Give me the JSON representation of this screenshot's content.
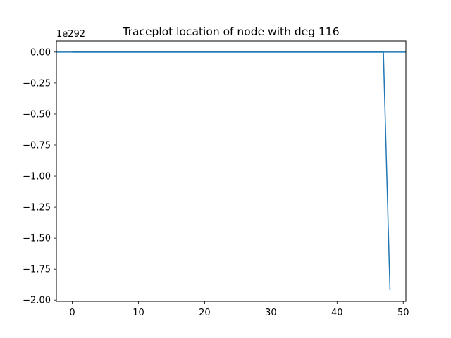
{
  "chart_data": {
    "type": "line",
    "title": "Traceplot location of node with deg 116",
    "xlabel": "",
    "ylabel": "",
    "offset_text": "1e292",
    "y_scale_factor": 1e+292,
    "xlim": [
      -2.4,
      50.4
    ],
    "ylim": [
      -2.01,
      0.09
    ],
    "x_ticks": [
      0,
      10,
      20,
      30,
      40,
      50
    ],
    "x_tick_labels": [
      "0",
      "10",
      "20",
      "30",
      "40",
      "50"
    ],
    "y_ticks": [
      0.0,
      -0.25,
      -0.5,
      -0.75,
      -1.0,
      -1.25,
      -1.5,
      -1.75,
      -2.0
    ],
    "y_tick_labels": [
      "0.00",
      "−0.25",
      "−0.50",
      "−0.75",
      "−1.00",
      "−1.25",
      "−1.50",
      "−1.75",
      "−2.00"
    ],
    "grid": false,
    "colors": {
      "series": "#1f77b4",
      "axes": "#000000"
    },
    "series": [
      {
        "x": [
          0,
          1,
          2,
          3,
          4,
          5,
          6,
          7,
          8,
          9,
          10,
          11,
          12,
          13,
          14,
          15,
          16,
          17,
          18,
          19,
          20,
          21,
          22,
          23,
          24,
          25,
          26,
          27,
          28,
          29,
          30,
          31,
          32,
          33,
          34,
          35,
          36,
          37,
          38,
          39,
          40,
          41,
          42,
          43,
          44,
          45,
          46,
          47,
          48
        ],
        "values": [
          0,
          0,
          0,
          0,
          0,
          0,
          0,
          0,
          0,
          0,
          0,
          0,
          0,
          0,
          0,
          0,
          0,
          0,
          0,
          0,
          0,
          0,
          0,
          0,
          0,
          0,
          0,
          0,
          0,
          0,
          0,
          0,
          0,
          0,
          0,
          0,
          0,
          0,
          0,
          0,
          0,
          0,
          0,
          0,
          0,
          0,
          0,
          0,
          -1.92
        ]
      }
    ],
    "reference_lines": [
      {
        "orientation": "horizontal",
        "y": 0
      }
    ]
  }
}
